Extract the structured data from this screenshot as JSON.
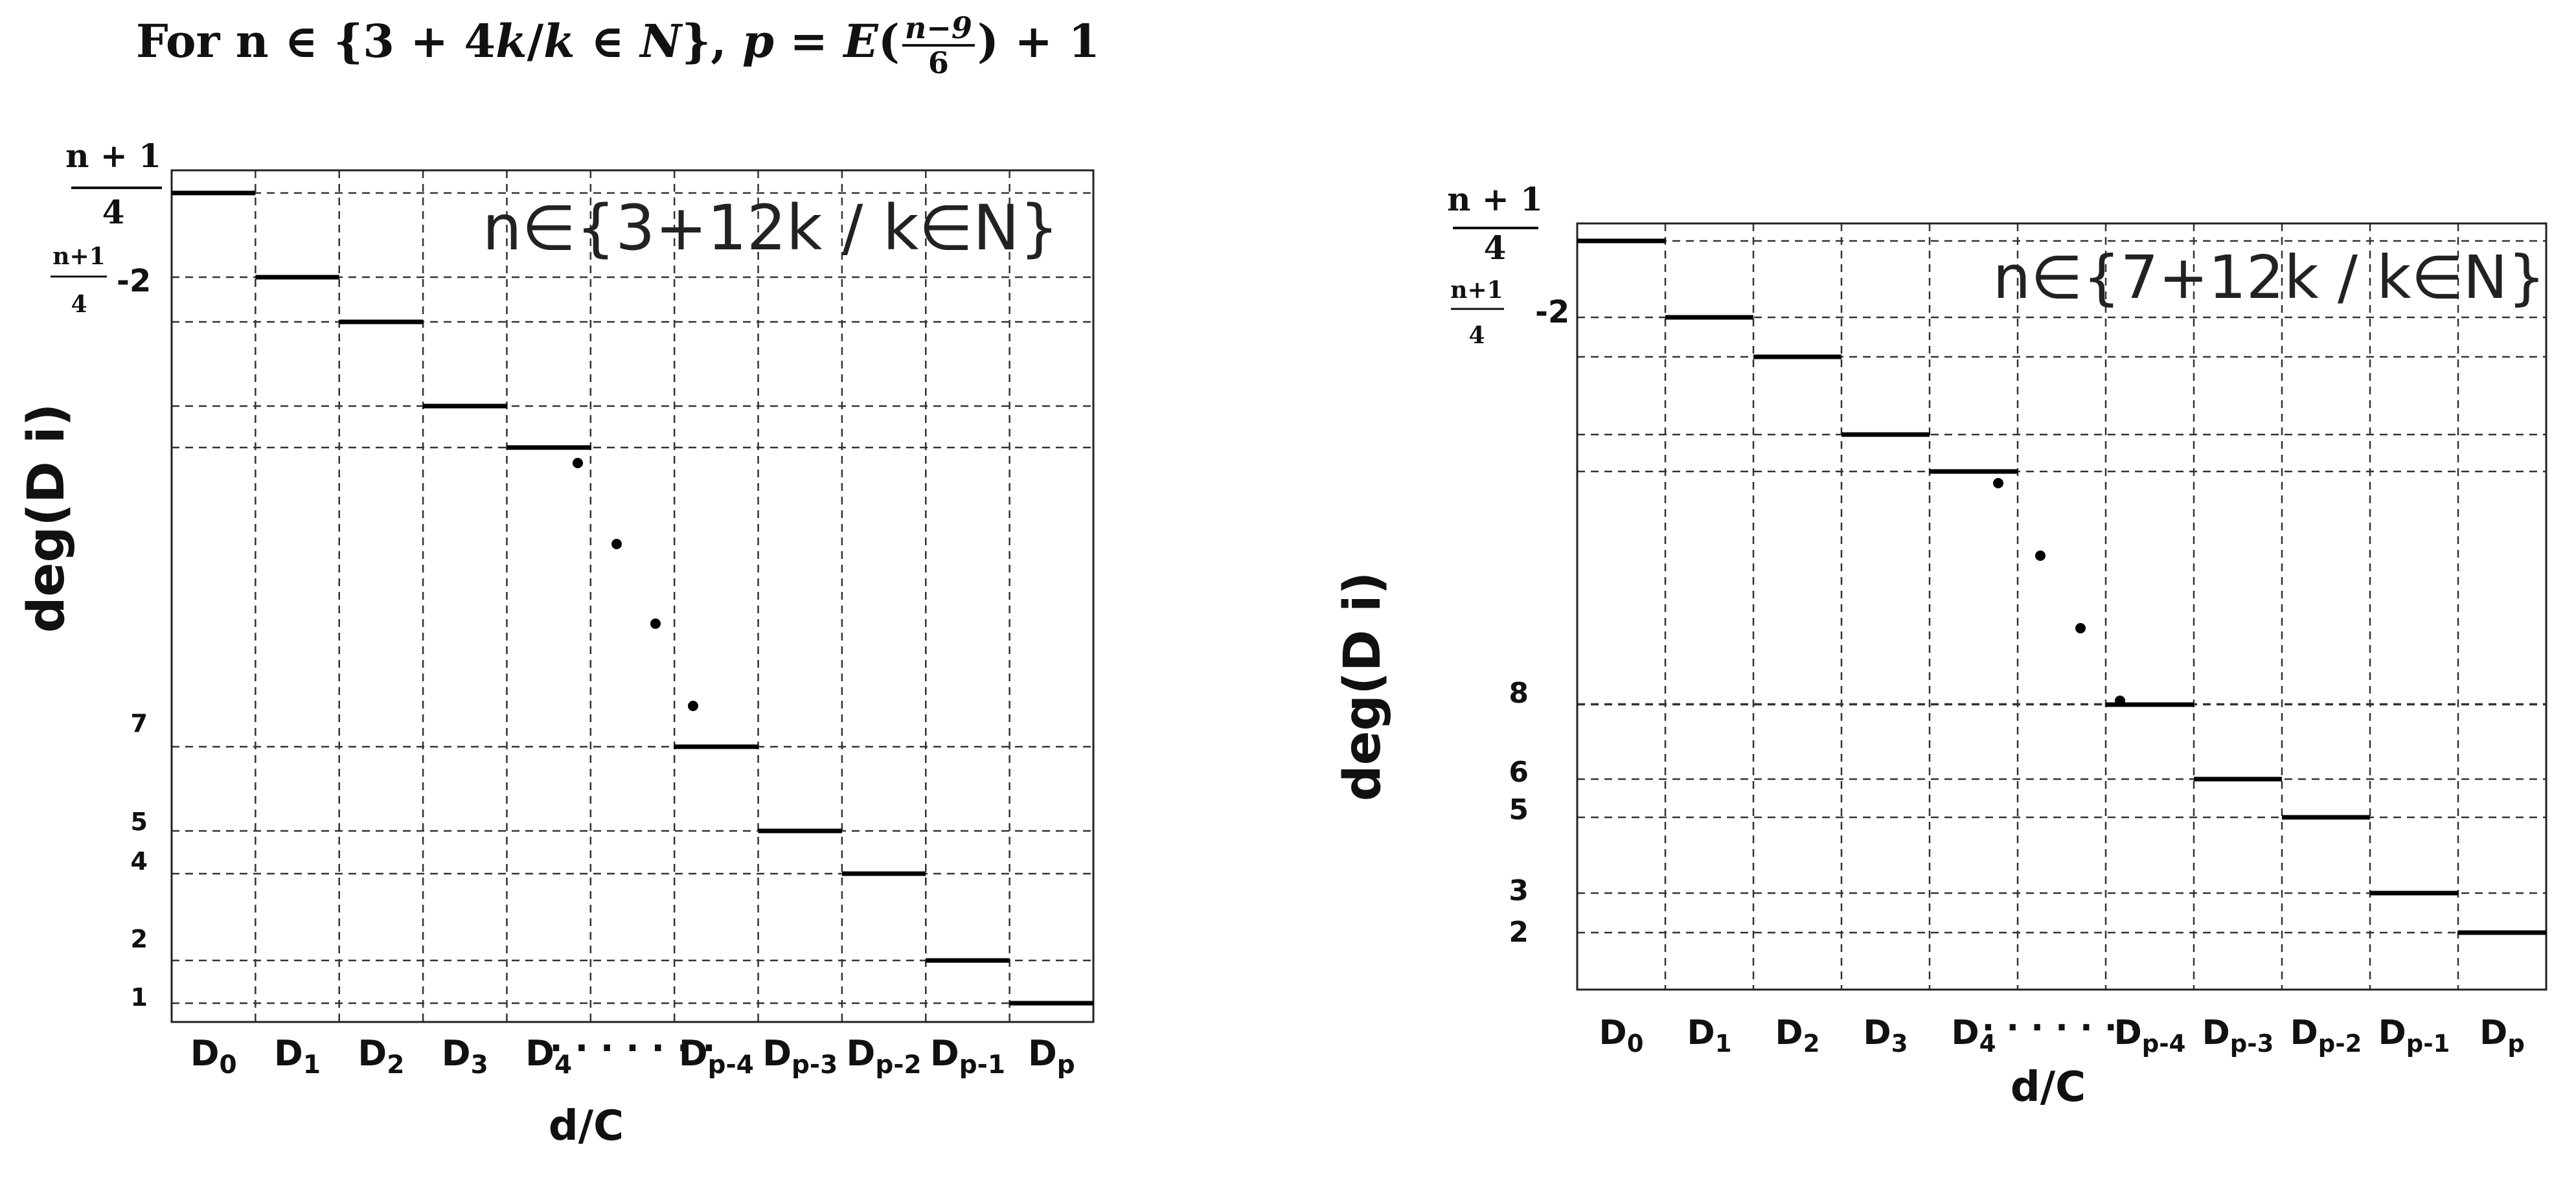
{
  "header": {
    "title_prefix": "For n ∈ {3 + 4",
    "title_k": "k",
    "title_slash": "/",
    "title_k2": "k",
    "title_in": " ∈ ",
    "title_N": "N",
    "title_close": "}, ",
    "title_p": "p",
    "title_eq": " = ",
    "title_E": "E",
    "title_frac_num": "n−9",
    "title_frac_den": "6",
    "title_suffix": " + 1"
  },
  "chart_data": [
    {
      "type": "step",
      "annotation": "n∈{3+12k / k∈N}",
      "xlabel": "d/C",
      "ylabel": "deg(D i)",
      "top_tick_num": "n + 1",
      "top_tick_den": "4",
      "second_tick_num": "n+1",
      "second_tick_den": "4",
      "second_tick_suffix": "-2",
      "y_ticks": [
        "7",
        "5",
        "4",
        "2",
        "1"
      ],
      "categories": [
        {
          "base": "D",
          "sub": "0"
        },
        {
          "base": "D",
          "sub": "1"
        },
        {
          "base": "D",
          "sub": "2"
        },
        {
          "base": "D",
          "sub": "3"
        },
        {
          "base": "D",
          "sub": "4"
        },
        {
          "base": "",
          "sub": "",
          "ellipsis": "· · · · · · ·"
        },
        {
          "base": "D",
          "sub": "p-4"
        },
        {
          "base": "D",
          "sub": "p-3"
        },
        {
          "base": "D",
          "sub": "p-2"
        },
        {
          "base": "D",
          "sub": "p-1"
        },
        {
          "base": "D",
          "sub": "p"
        }
      ],
      "steps": [
        {
          "category": "D0",
          "value": "(n+1)/4"
        },
        {
          "category": "D1",
          "value": "(n+1)/4 - 2"
        },
        {
          "category": "D2",
          "value": "(n+1)/4 - 3"
        },
        {
          "category": "D3",
          "value": "(n+1)/4 - 5"
        },
        {
          "category": "D4",
          "value": "(n+1)/4 - 6"
        },
        {
          "category": "Dp-4",
          "value": 7
        },
        {
          "category": "Dp-3",
          "value": 5
        },
        {
          "category": "Dp-2",
          "value": 4
        },
        {
          "category": "Dp-1",
          "value": 2
        },
        {
          "category": "Dp",
          "value": 1
        }
      ],
      "grid": true
    },
    {
      "type": "step",
      "annotation": "n∈{7+12k / k∈N}",
      "xlabel": "d/C",
      "ylabel": "deg(D i)",
      "top_tick_num": "n + 1",
      "top_tick_den": "4",
      "second_tick_num": "n+1",
      "second_tick_den": "4",
      "second_tick_suffix": "-2",
      "y_ticks": [
        "8",
        "6",
        "5",
        "3",
        "2"
      ],
      "categories": [
        {
          "base": "D",
          "sub": "0"
        },
        {
          "base": "D",
          "sub": "1"
        },
        {
          "base": "D",
          "sub": "2"
        },
        {
          "base": "D",
          "sub": "3"
        },
        {
          "base": "D",
          "sub": "4"
        },
        {
          "base": "",
          "sub": "",
          "ellipsis": "· · · · · · ·"
        },
        {
          "base": "D",
          "sub": "p-4"
        },
        {
          "base": "D",
          "sub": "p-3"
        },
        {
          "base": "D",
          "sub": "p-2"
        },
        {
          "base": "D",
          "sub": "p-1"
        },
        {
          "base": "D",
          "sub": "p"
        }
      ],
      "steps": [
        {
          "category": "D0",
          "value": "(n+1)/4"
        },
        {
          "category": "D1",
          "value": "(n+1)/4 - 2"
        },
        {
          "category": "D2",
          "value": "(n+1)/4 - 3"
        },
        {
          "category": "D3",
          "value": "(n+1)/4 - 5"
        },
        {
          "category": "D4",
          "value": "(n+1)/4 - 6"
        },
        {
          "category": "Dp-4",
          "value": 8
        },
        {
          "category": "Dp-3",
          "value": 6
        },
        {
          "category": "Dp-2",
          "value": 5
        },
        {
          "category": "Dp-1",
          "value": 3
        },
        {
          "category": "Dp",
          "value": 2
        }
      ],
      "grid": true
    }
  ]
}
